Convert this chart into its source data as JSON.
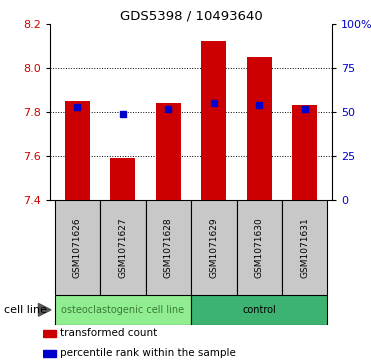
{
  "title": "GDS5398 / 10493640",
  "samples": [
    "GSM1071626",
    "GSM1071627",
    "GSM1071628",
    "GSM1071629",
    "GSM1071630",
    "GSM1071631"
  ],
  "bar_tops": [
    7.85,
    7.59,
    7.84,
    8.12,
    8.05,
    7.83
  ],
  "bar_bottom": 7.4,
  "blue_y": [
    7.82,
    7.79,
    7.81,
    7.84,
    7.83,
    7.81
  ],
  "ylim": [
    7.4,
    8.2
  ],
  "yticks_left": [
    7.4,
    7.6,
    7.8,
    8.0,
    8.2
  ],
  "yticks_right": [
    0,
    25,
    50,
    75,
    100
  ],
  "yticks_right_labels": [
    "0",
    "25",
    "50",
    "75",
    "100%"
  ],
  "groups": [
    {
      "label": "osteoclastogenic cell line",
      "start": 0,
      "end": 3,
      "color": "#90EE90"
    },
    {
      "label": "control",
      "start": 3,
      "end": 6,
      "color": "#3CB371"
    }
  ],
  "bar_color": "#CC0000",
  "blue_color": "#0000CC",
  "bar_width": 0.55,
  "left_label_color": "#CC0000",
  "right_label_color": "#0000CC",
  "cell_line_label": "cell line",
  "legend_items": [
    {
      "label": "transformed count",
      "color": "#CC0000"
    },
    {
      "label": "percentile rank within the sample",
      "color": "#0000CC"
    }
  ],
  "sample_box_color": "#C8C8C8",
  "group_colors": [
    "#90EE90",
    "#3CB371"
  ],
  "group_text_colors": [
    "#3a7a3a",
    "#000000"
  ]
}
